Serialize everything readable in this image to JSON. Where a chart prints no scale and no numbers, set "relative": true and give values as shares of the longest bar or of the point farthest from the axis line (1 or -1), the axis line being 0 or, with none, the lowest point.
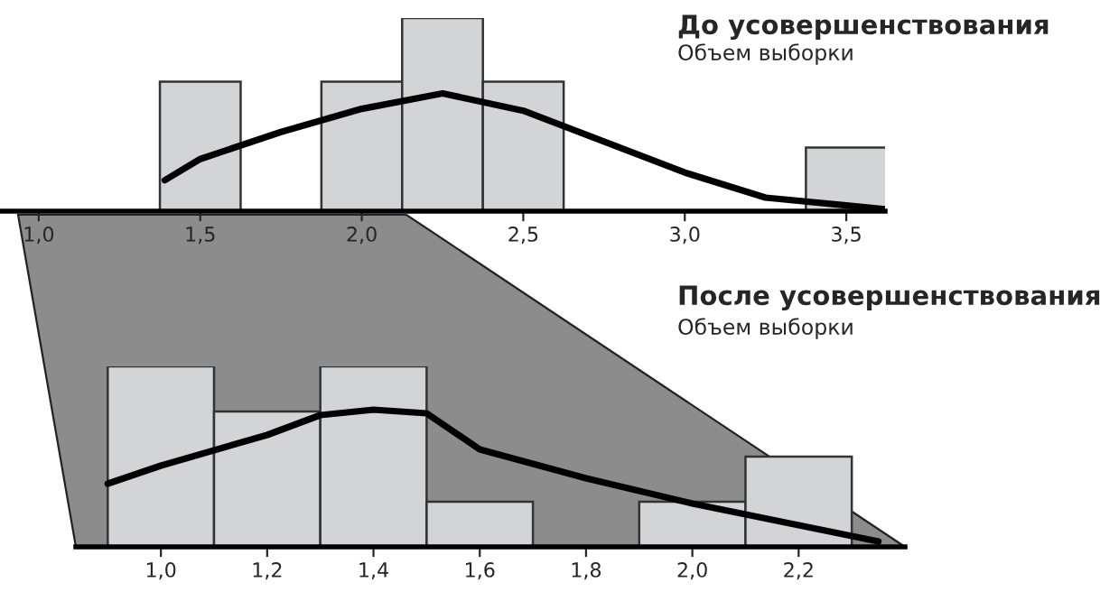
{
  "chart_data": [
    {
      "type": "histogram",
      "title": "До усовершенствования",
      "subtitle": "Объем выборки",
      "relative": true,
      "bins": [
        1.375,
        1.625,
        1.875,
        2.125,
        2.375,
        2.625,
        2.875,
        3.125,
        3.375,
        3.625
      ],
      "values": [
        0.67,
        0,
        0.67,
        1,
        0.67,
        0,
        0,
        0,
        0.33
      ],
      "color": "#d3d4d6",
      "series": [
        {
          "type": "line",
          "color": "#000000",
          "x": [
            1.39,
            1.5,
            1.75,
            2.0,
            2.25,
            2.5,
            2.75,
            3.0,
            3.25,
            3.5,
            3.62
          ],
          "values": [
            0.16,
            0.27,
            0.41,
            0.53,
            0.61,
            0.52,
            0.36,
            0.2,
            0.07,
            0.03,
            0.01
          ]
        }
      ],
      "xlim": [
        0.88,
        3.62
      ],
      "xticks": [
        {
          "value": 1.0,
          "label": "1,0"
        },
        {
          "value": 1.5,
          "label": "1,5"
        },
        {
          "value": 2.0,
          "label": "2,0"
        },
        {
          "value": 2.5,
          "label": "2,5"
        },
        {
          "value": 3.0,
          "label": "3,0"
        },
        {
          "value": 3.5,
          "label": "3,5"
        }
      ]
    },
    {
      "type": "histogram",
      "title": "После усовершенствования",
      "subtitle": "Объем выборки",
      "relative": true,
      "bins": [
        0.9,
        1.1,
        1.3,
        1.5,
        1.7,
        1.9,
        2.1,
        2.3
      ],
      "values": [
        1,
        0.75,
        1,
        0.25,
        0,
        0.25,
        0.5
      ],
      "color": "#d3d4d6",
      "series": [
        {
          "type": "line",
          "color": "#000000",
          "x": [
            0.9,
            1.0,
            1.2,
            1.3,
            1.4,
            1.5,
            1.6,
            1.8,
            2.0,
            2.2,
            2.35
          ],
          "values": [
            0.35,
            0.45,
            0.62,
            0.73,
            0.76,
            0.74,
            0.54,
            0.38,
            0.24,
            0.12,
            0.03
          ]
        }
      ],
      "xlim": [
        0.84,
        2.4
      ],
      "xticks": [
        {
          "value": 1.0,
          "label": "1,0"
        },
        {
          "value": 1.2,
          "label": "1,2"
        },
        {
          "value": 1.4,
          "label": "1,4"
        },
        {
          "value": 1.6,
          "label": "1,6"
        },
        {
          "value": 1.8,
          "label": "1,8"
        },
        {
          "value": 2.0,
          "label": "2,0"
        },
        {
          "value": 2.2,
          "label": "2,2"
        }
      ]
    }
  ]
}
